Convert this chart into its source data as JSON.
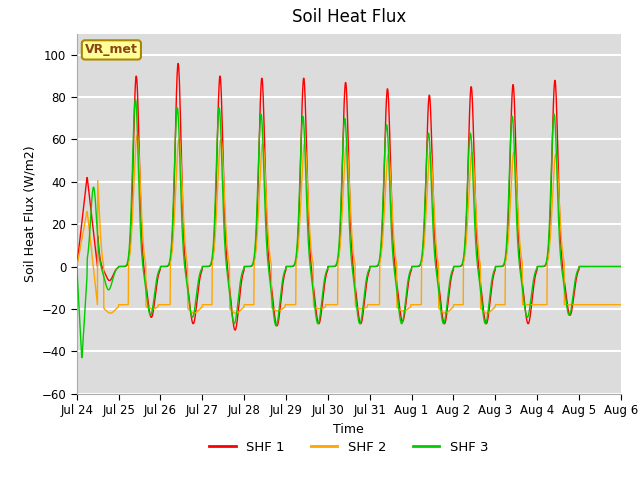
{
  "title": "Soil Heat Flux",
  "ylabel": "Soil Heat Flux (W/m2)",
  "xlabel": "Time",
  "ylim": [
    -60,
    110
  ],
  "yticks": [
    -60,
    -40,
    -20,
    0,
    20,
    40,
    60,
    80,
    100
  ],
  "bg_color": "#dcdcdc",
  "grid_color": "#ffffff",
  "line_colors": {
    "SHF 1": "#ff0000",
    "SHF 2": "#ffa500",
    "SHF 3": "#00cc00"
  },
  "annotation_text": "VR_met",
  "annotation_color": "#8B4513",
  "annotation_bg": "#ffff99",
  "annotation_border": "#aa8800",
  "n_days": 13,
  "peaks_shf1": [
    92,
    90,
    96,
    90,
    89,
    89,
    87,
    84,
    81,
    85,
    86,
    88,
    0
  ],
  "peaks_shf2": [
    54,
    62,
    60,
    60,
    58,
    58,
    57,
    53,
    54,
    54,
    54,
    53,
    0
  ],
  "peaks_shf3": [
    75,
    79,
    75,
    75,
    72,
    71,
    70,
    67,
    63,
    63,
    71,
    72,
    0
  ],
  "troughs_shf1": [
    -22,
    -24,
    -27,
    -30,
    -28,
    -27,
    -27,
    -26,
    -27,
    -27,
    -27,
    -23,
    -23
  ],
  "troughs_shf2": [
    -22,
    -20,
    -22,
    -22,
    -21,
    -20,
    -20,
    -21,
    -22,
    -22,
    -18,
    -18,
    -18
  ],
  "troughs_shf3": [
    -22,
    -23,
    -24,
    -27,
    -28,
    -27,
    -27,
    -27,
    -27,
    -27,
    -24,
    -23,
    -23
  ],
  "xtick_labels": [
    "Jul 24",
    "Jul 25",
    "Jul 26",
    "Jul 27",
    "Jul 28",
    "Jul 29",
    "Jul 30",
    "Jul 31",
    "Aug 1",
    "Aug 2",
    "Aug 3",
    "Aug 4",
    "Aug 5",
    "Aug 6"
  ],
  "legend_labels": [
    "SHF 1",
    "SHF 2",
    "SHF 3"
  ],
  "title_fontsize": 12,
  "label_fontsize": 9,
  "tick_fontsize": 8.5
}
